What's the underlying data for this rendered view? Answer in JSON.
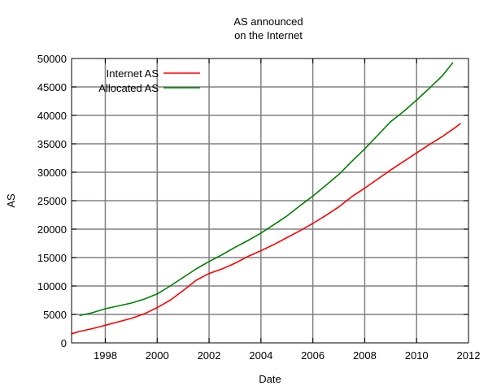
{
  "chart_data": {
    "type": "line",
    "title_lines": [
      "AS announced",
      "on the Internet"
    ],
    "xlabel": "Date",
    "ylabel": "AS",
    "xlim": [
      1996.7,
      2012.0
    ],
    "ylim": [
      0,
      50000
    ],
    "x_ticks": [
      1998,
      2000,
      2002,
      2004,
      2006,
      2008,
      2010,
      2012
    ],
    "y_ticks": [
      0,
      5000,
      10000,
      15000,
      20000,
      25000,
      30000,
      35000,
      40000,
      45000,
      50000
    ],
    "grid": true,
    "legend_position": "top-left",
    "series": [
      {
        "name": "Internet AS",
        "color": "#ff0000",
        "x": [
          1996.7,
          1997.0,
          1997.5,
          1998.0,
          1998.5,
          1999.0,
          1999.5,
          2000.0,
          2000.5,
          2001.0,
          2001.5,
          2002.0,
          2002.5,
          2003.0,
          2003.5,
          2004.0,
          2004.5,
          2005.0,
          2005.5,
          2006.0,
          2006.5,
          2007.0,
          2007.5,
          2008.0,
          2008.5,
          2009.0,
          2009.5,
          2010.0,
          2010.5,
          2011.0,
          2011.5,
          2011.7
        ],
        "y": [
          1600,
          2000,
          2500,
          3100,
          3700,
          4300,
          5100,
          6200,
          7500,
          9200,
          11000,
          12200,
          13000,
          14000,
          15200,
          16200,
          17300,
          18500,
          19700,
          21000,
          22400,
          23900,
          25700,
          27200,
          28800,
          30400,
          31900,
          33400,
          34900,
          36300,
          37900,
          38600
        ]
      },
      {
        "name": "Allocated AS",
        "color": "#008000",
        "x": [
          1997.0,
          1997.5,
          1998.0,
          1998.5,
          1999.0,
          1999.5,
          2000.0,
          2000.5,
          2001.0,
          2001.5,
          2002.0,
          2002.5,
          2003.0,
          2003.5,
          2004.0,
          2004.5,
          2005.0,
          2005.5,
          2006.0,
          2006.5,
          2007.0,
          2007.5,
          2008.0,
          2008.5,
          2009.0,
          2009.5,
          2010.0,
          2010.5,
          2011.0,
          2011.4
        ],
        "y": [
          4800,
          5300,
          6000,
          6500,
          7000,
          7700,
          8600,
          10000,
          11500,
          13000,
          14300,
          15500,
          16800,
          18000,
          19300,
          20800,
          22300,
          24100,
          25800,
          27700,
          29600,
          31900,
          34100,
          36500,
          38900,
          40700,
          42700,
          44800,
          47000,
          49300
        ]
      }
    ]
  }
}
